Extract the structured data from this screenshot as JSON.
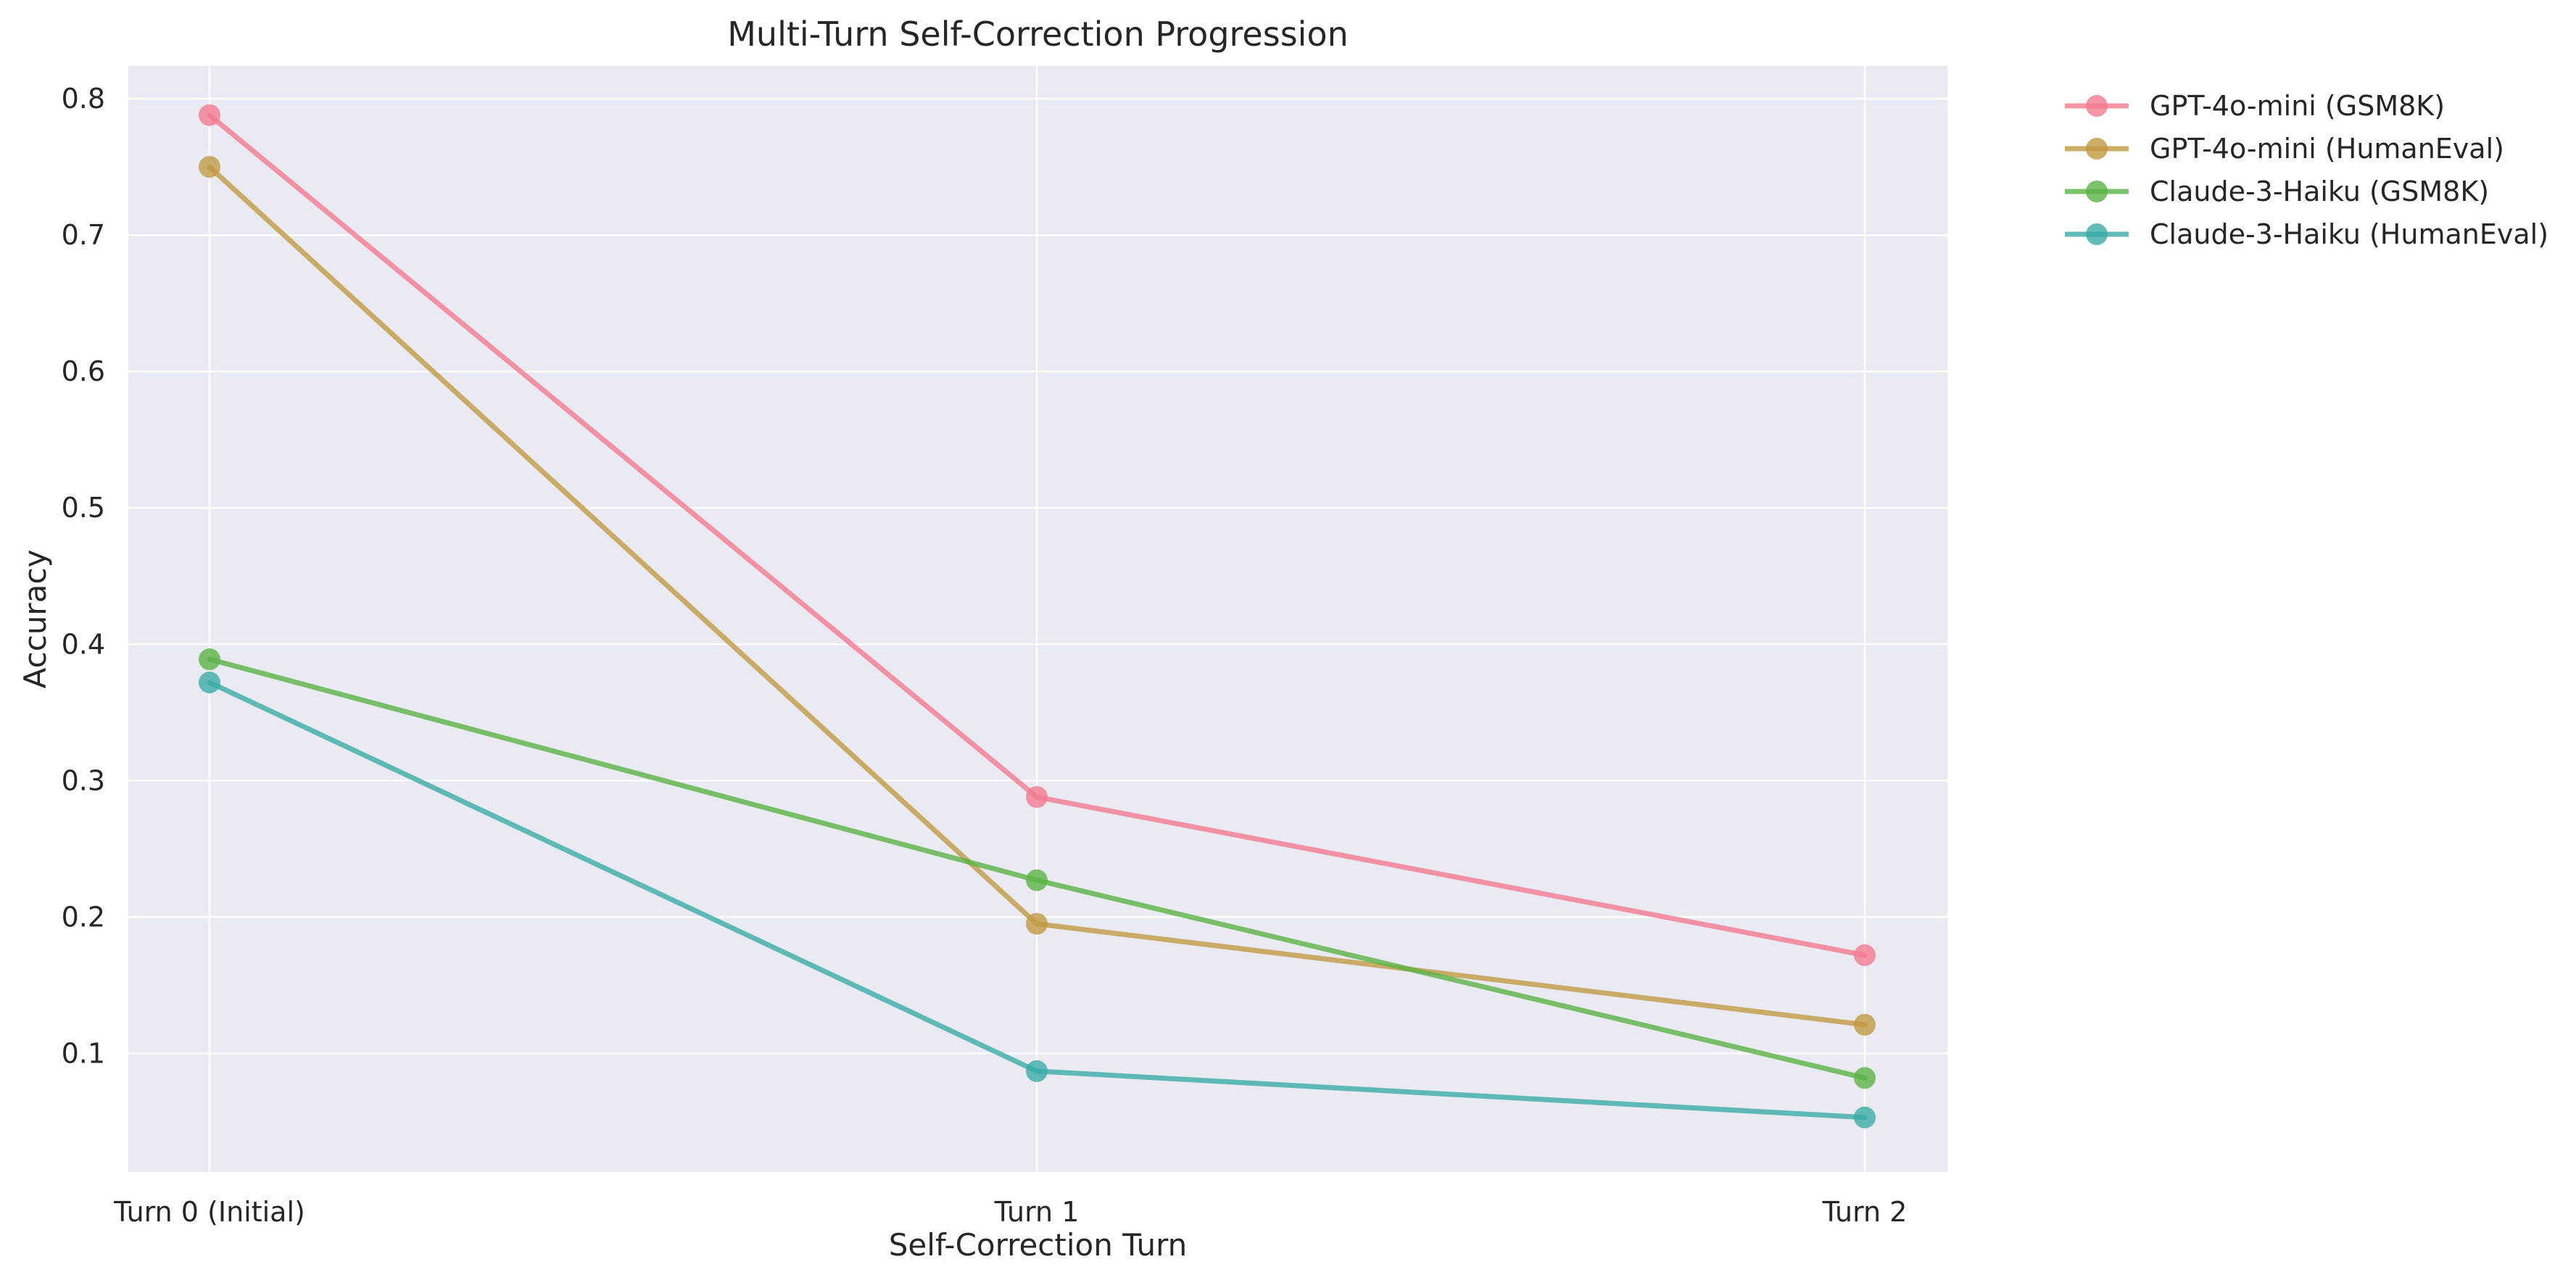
{
  "chart_data": {
    "type": "line",
    "title": "Multi-Turn Self-Correction Progression",
    "xlabel": "Self-Correction Turn",
    "ylabel": "Accuracy",
    "categories": [
      "Turn 0 (Initial)",
      "Turn 1",
      "Turn 2"
    ],
    "ylim": [
      0.013,
      0.824
    ],
    "yticks": [
      0.1,
      0.2,
      0.3,
      0.4,
      0.5,
      0.6,
      0.7,
      0.8
    ],
    "ytick_labels": [
      "0.1",
      "0.2",
      "0.3",
      "0.4",
      "0.5",
      "0.6",
      "0.7",
      "0.8"
    ],
    "grid": true,
    "legend_position": "outside-top-right",
    "series": [
      {
        "name": "GPT-4o-mini (GSM8K)",
        "color": "#f27a8f",
        "values": [
          0.788,
          0.288,
          0.172
        ]
      },
      {
        "name": "GPT-4o-mini (HumanEval)",
        "color": "#c09a42",
        "values": [
          0.75,
          0.195,
          0.121
        ]
      },
      {
        "name": "Claude-3-Haiku (GSM8K)",
        "color": "#5bb345",
        "values": [
          0.389,
          0.227,
          0.082
        ]
      },
      {
        "name": "Claude-3-Haiku (HumanEval)",
        "color": "#3aaba6",
        "values": [
          0.372,
          0.087,
          0.053
        ]
      }
    ]
  }
}
